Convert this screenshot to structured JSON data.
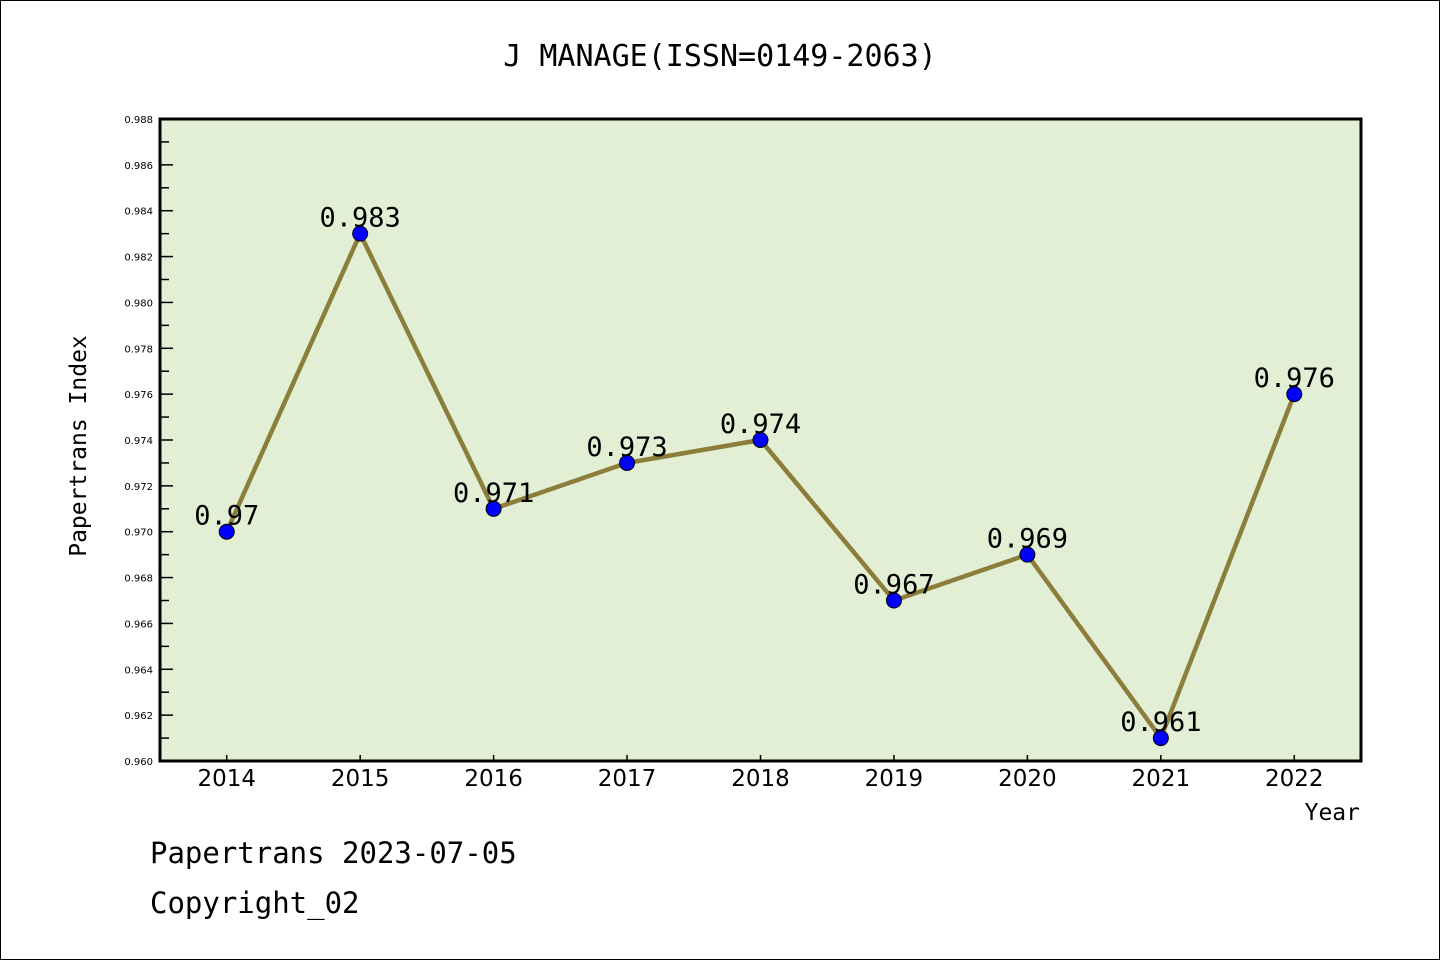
{
  "chart_data": {
    "type": "line",
    "title": "J MANAGE(ISSN=0149-2063)",
    "xlabel": "Year",
    "ylabel": "Papertrans Index",
    "categories": [
      "2014",
      "2015",
      "2016",
      "2017",
      "2018",
      "2019",
      "2020",
      "2021",
      "2022"
    ],
    "values": [
      0.97,
      0.983,
      0.971,
      0.973,
      0.974,
      0.967,
      0.969,
      0.961,
      0.976
    ],
    "data_labels": [
      "0.97",
      "0.983",
      "0.971",
      "0.973",
      "0.974",
      "0.967",
      "0.969",
      "0.961",
      "0.976"
    ],
    "ylim": [
      0.96,
      0.988
    ],
    "yticks": [
      "0.960",
      "0.962",
      "0.964",
      "0.966",
      "0.968",
      "0.970",
      "0.972",
      "0.974",
      "0.976",
      "0.978",
      "0.980",
      "0.982",
      "0.984",
      "0.986",
      "0.988"
    ],
    "grid": false,
    "legend": "none",
    "colors": {
      "line": "#8B7D3A",
      "marker": "#0000FF",
      "plot_bg": "#E2EFD5"
    }
  },
  "footer": {
    "line1": "Papertrans 2023-07-05",
    "line2": "Copyright_02"
  }
}
